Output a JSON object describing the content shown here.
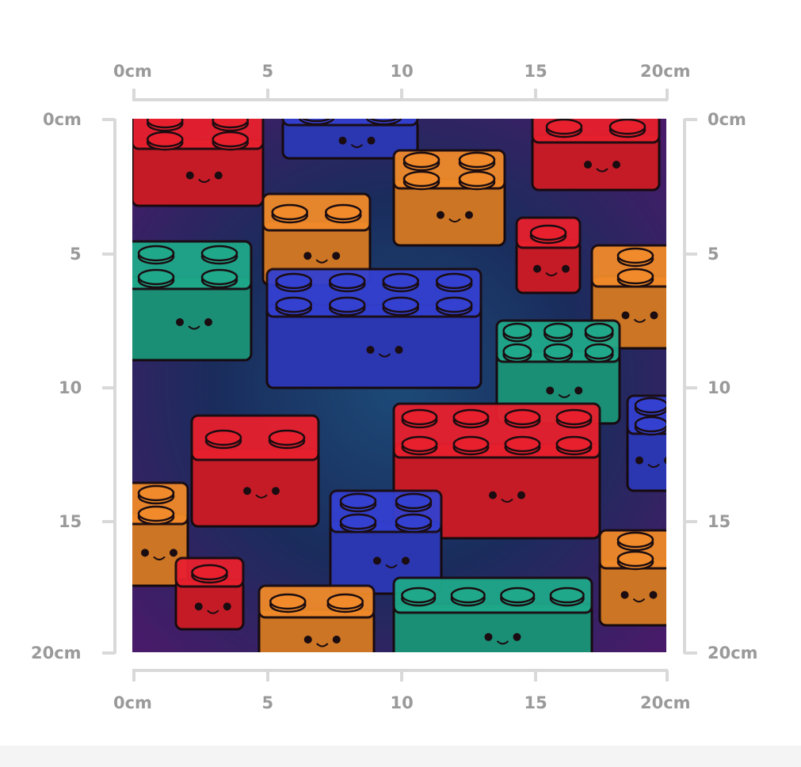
{
  "rulers": {
    "top": [
      "0cm",
      "5",
      "10",
      "15",
      "20cm"
    ],
    "bottom": [
      "0cm",
      "5",
      "10",
      "15",
      "20cm"
    ],
    "left": [
      "0cm",
      "5",
      "10",
      "15",
      "20cm"
    ],
    "right": [
      "0cm",
      "5",
      "10",
      "15",
      "20cm"
    ]
  },
  "pattern": {
    "description_icon": "smiling-toy-bricks-pattern",
    "colors": {
      "background": "#1b2f5e",
      "red": "#e8202e",
      "orange": "#f08a2a",
      "blue": "#3340d0",
      "green": "#1fa88a"
    }
  }
}
